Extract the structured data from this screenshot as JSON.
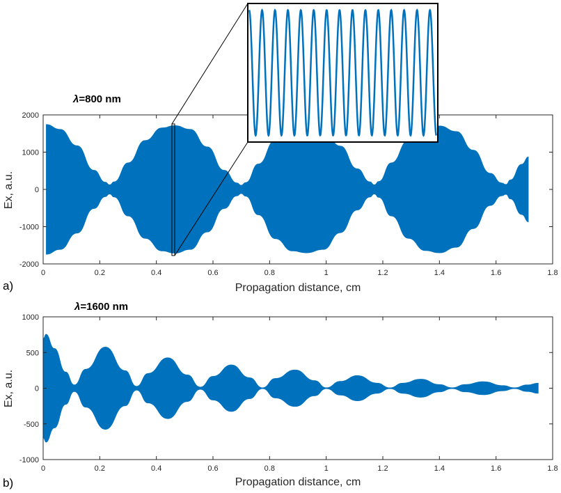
{
  "chart_data": [
    {
      "panel": "a)",
      "type": "line",
      "title_symbol": "λ",
      "title": "=800 nm",
      "xlabel": "Propagation distance, cm",
      "ylabel": "Ex, a.u.",
      "xlim": [
        0,
        1.8
      ],
      "ylim": [
        -2000,
        2000
      ],
      "xticks": [
        0,
        0.2,
        0.4,
        0.6,
        0.8,
        1,
        1.2,
        1.4,
        1.6,
        1.8
      ],
      "yticks": [
        -2000,
        -1000,
        0,
        1000,
        2000
      ],
      "series_color": "#0072BD",
      "envelope": {
        "x": [
          0.01,
          0.06,
          0.12,
          0.18,
          0.22,
          0.235,
          0.25,
          0.3,
          0.36,
          0.42,
          0.465,
          0.52,
          0.58,
          0.64,
          0.685,
          0.7,
          0.715,
          0.76,
          0.82,
          0.88,
          0.93,
          0.99,
          1.05,
          1.11,
          1.155,
          1.17,
          1.185,
          1.23,
          1.29,
          1.35,
          1.4,
          1.46,
          1.52,
          1.58,
          1.62,
          1.635,
          1.65,
          1.69,
          1.715
        ],
        "amp": [
          1750,
          1620,
          1180,
          520,
          200,
          130,
          210,
          720,
          1320,
          1660,
          1720,
          1620,
          1150,
          520,
          180,
          120,
          190,
          690,
          1330,
          1660,
          1710,
          1620,
          1170,
          560,
          210,
          130,
          220,
          720,
          1320,
          1650,
          1710,
          1560,
          1060,
          440,
          180,
          140,
          260,
          680,
          880
        ]
      },
      "inset": {
        "zoom_x_range": [
          0.462,
          0.468
        ],
        "zoom_y_range": [
          -1720,
          1720
        ],
        "cycles": 14.5,
        "border": "#000000"
      }
    },
    {
      "panel": "b)",
      "type": "line",
      "title_symbol": "λ",
      "title": "=1600 nm",
      "xlabel": "Propagation distance, cm",
      "ylabel": "Ex, a.u.",
      "xlim": [
        0,
        1.8
      ],
      "ylim": [
        -1000,
        1000
      ],
      "xticks": [
        0,
        0.2,
        0.4,
        0.6,
        0.8,
        1,
        1.2,
        1.4,
        1.6,
        1.8
      ],
      "yticks": [
        -1000,
        -500,
        0,
        500,
        1000
      ],
      "series_color": "#0072BD",
      "envelope": {
        "x": [
          0.0,
          0.01,
          0.04,
          0.08,
          0.11,
          0.15,
          0.22,
          0.29,
          0.33,
          0.37,
          0.44,
          0.51,
          0.555,
          0.6,
          0.665,
          0.73,
          0.775,
          0.82,
          0.89,
          0.96,
          1.0,
          1.05,
          1.11,
          1.18,
          1.225,
          1.27,
          1.335,
          1.4,
          1.445,
          1.49,
          1.555,
          1.625,
          1.665,
          1.71,
          1.75
        ],
        "amp": [
          700,
          760,
          560,
          230,
          50,
          270,
          580,
          250,
          30,
          210,
          430,
          190,
          20,
          170,
          330,
          150,
          10,
          140,
          260,
          110,
          10,
          100,
          180,
          75,
          10,
          75,
          130,
          55,
          10,
          55,
          95,
          40,
          10,
          50,
          75
        ]
      }
    }
  ]
}
